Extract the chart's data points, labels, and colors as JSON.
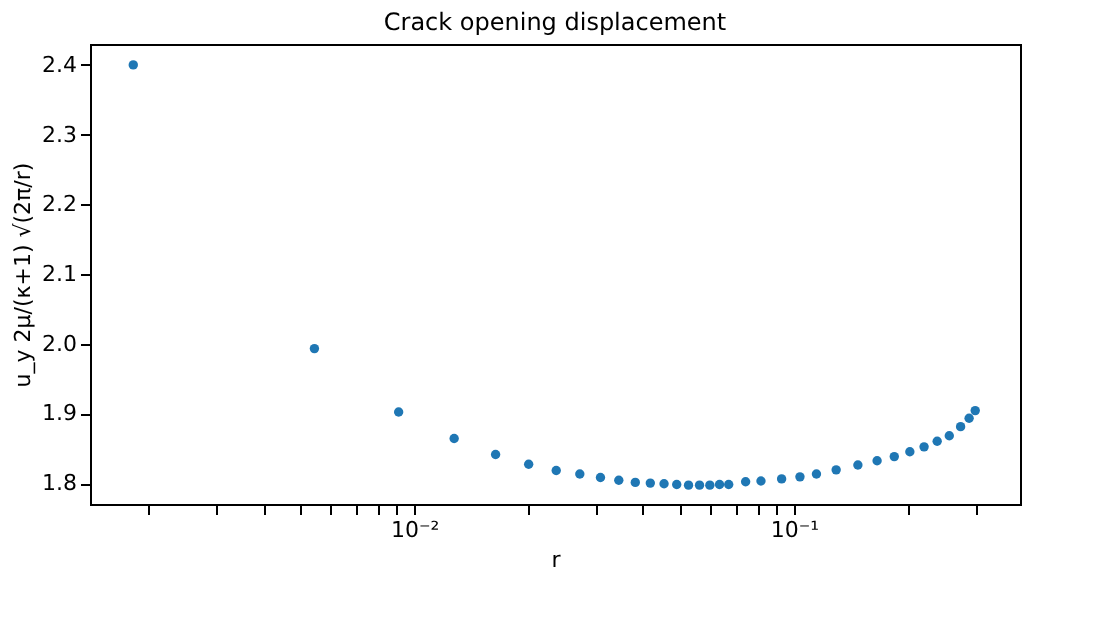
{
  "chart_data": {
    "type": "scatter",
    "title": "Crack opening displacement",
    "xlabel": "r",
    "ylabel": "u_y 2μ/(κ+1) √(2π/r)",
    "x": [
      0.00182,
      0.00546,
      0.0091,
      0.01274,
      0.01638,
      0.02002,
      0.02366,
      0.0273,
      0.03094,
      0.03458,
      0.03822,
      0.04186,
      0.0455,
      0.04914,
      0.05278,
      0.05642,
      0.06006,
      0.0637,
      0.06734,
      0.07462,
      0.0819,
      0.09282,
      0.10374,
      0.11466,
      0.12922,
      0.14742,
      0.16562,
      0.18382,
      0.20202,
      0.22022,
      0.23842,
      0.25662,
      0.27482,
      0.28938,
      0.3003
    ],
    "series": [
      {
        "color": "#1f77b4",
        "values": [
          2.4,
          1.993,
          1.902,
          1.864,
          1.841,
          1.827,
          1.818,
          1.813,
          1.808,
          1.804,
          1.801,
          1.8,
          1.799,
          1.798,
          1.797,
          1.797,
          1.797,
          1.798,
          1.798,
          1.802,
          1.803,
          1.806,
          1.809,
          1.813,
          1.819,
          1.826,
          1.832,
          1.838,
          1.845,
          1.852,
          1.86,
          1.868,
          1.881,
          1.893,
          1.904
        ]
      }
    ],
    "log": "x",
    "xlim": [
      0.0014,
      0.394
    ],
    "ylim": [
      1.77,
      2.43
    ],
    "xticks": [
      {
        "value": 0.002,
        "label": null
      },
      {
        "value": 0.003,
        "label": null
      },
      {
        "value": 0.004,
        "label": null
      },
      {
        "value": 0.005,
        "label": null
      },
      {
        "value": 0.006,
        "label": null
      },
      {
        "value": 0.007,
        "label": null
      },
      {
        "value": 0.008,
        "label": null
      },
      {
        "value": 0.009,
        "label": null
      },
      {
        "value": 0.01,
        "label": "10⁻²"
      },
      {
        "value": 0.02,
        "label": null
      },
      {
        "value": 0.03,
        "label": null
      },
      {
        "value": 0.04,
        "label": null
      },
      {
        "value": 0.05,
        "label": null
      },
      {
        "value": 0.06,
        "label": null
      },
      {
        "value": 0.07,
        "label": null
      },
      {
        "value": 0.08,
        "label": null
      },
      {
        "value": 0.09,
        "label": null
      },
      {
        "value": 0.1,
        "label": "10⁻¹"
      },
      {
        "value": 0.2,
        "label": null
      },
      {
        "value": 0.3,
        "label": null
      }
    ],
    "yticks": [
      1.8,
      1.9,
      {
        "value": 2,
        "label": "2.0"
      },
      2.1,
      2.2,
      2.3,
      2.4
    ],
    "marker": "circle",
    "grid": false
  }
}
